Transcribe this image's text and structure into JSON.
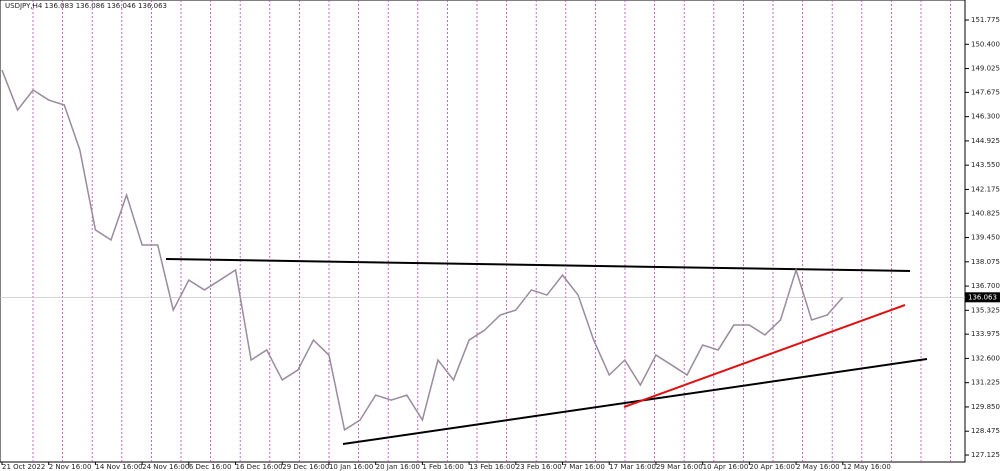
{
  "chart_data": {
    "type": "line",
    "title": "USDJPY,H4  136.083 136.086 136.046 136.063",
    "categories": [
      "21 Oct 2022",
      null,
      null,
      "2 Nov 16:00",
      null,
      null,
      "14 Nov 16:00",
      null,
      null,
      "24 Nov 16:00",
      null,
      null,
      "6 Dec 16:00",
      null,
      null,
      "16 Dec 16:00",
      null,
      null,
      "29 Dec 16:00",
      null,
      null,
      "10 Jan 16:00",
      null,
      null,
      "20 Jan 16:00",
      null,
      null,
      "1 Feb 16:00",
      null,
      null,
      "13 Feb 16:00",
      null,
      null,
      "23 Feb 16:00",
      null,
      null,
      "7 Mar 16:00",
      null,
      null,
      "17 Mar 16:00",
      null,
      null,
      "29 Mar 16:00",
      null,
      null,
      "10 Apr 16:00",
      null,
      null,
      "20 Apr 16:00",
      null,
      null,
      "2 May 16:00",
      null,
      null,
      "12 May 16:00"
    ],
    "series": [
      {
        "name": "USDJPY,H4",
        "color": "#9a8a9e",
        "values": [
          148.94,
          146.68,
          147.81,
          147.24,
          146.96,
          144.41,
          139.88,
          139.31,
          141.86,
          139.03,
          139.03,
          135.34,
          137.04,
          136.48,
          137.04,
          137.61,
          132.51,
          133.08,
          131.38,
          131.94,
          133.64,
          132.79,
          128.55,
          129.11,
          130.52,
          130.24,
          130.52,
          129.11,
          132.51,
          131.38,
          133.64,
          134.21,
          135.06,
          135.34,
          136.48,
          136.19,
          137.32,
          136.19,
          133.64,
          131.66,
          132.51,
          131.09,
          132.79,
          132.23,
          131.66,
          133.36,
          133.08,
          134.49,
          134.49,
          133.93,
          134.78,
          137.61,
          134.78,
          135.06,
          136.06
        ]
      }
    ],
    "ylim": [
      126.73,
      152.91
    ],
    "yticks": [
      151.775,
      {
        "value": 150.4,
        "label": "150.400"
      },
      149.025,
      147.675,
      {
        "value": 146.3,
        "label": "146.300"
      },
      144.925,
      {
        "value": 143.55,
        "label": "143.550"
      },
      142.175,
      140.825,
      {
        "value": 139.45,
        "label": "139.450"
      },
      138.075,
      {
        "value": 136.7,
        "label": "136.700"
      },
      135.325,
      133.975,
      {
        "value": 132.6,
        "label": "132.600"
      },
      131.225,
      {
        "value": 129.85,
        "label": "129.850"
      },
      128.475,
      127.125
    ],
    "current_price": 136.063
  }
}
